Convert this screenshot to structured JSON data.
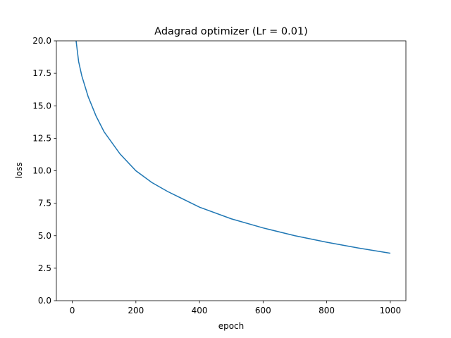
{
  "chart_data": {
    "type": "line",
    "title": "Adagrad optimizer (Lr = 0.01)",
    "xlabel": "epoch",
    "ylabel": "loss",
    "x": [
      12,
      20,
      30,
      50,
      75,
      100,
      150,
      200,
      250,
      300,
      400,
      500,
      600,
      700,
      800,
      900,
      1000
    ],
    "series": [
      {
        "name": "loss",
        "color": "#1f77b4",
        "values": [
          20,
          18.4,
          17.3,
          15.7,
          14.2,
          13.0,
          11.3,
          10.0,
          9.1,
          8.4,
          7.2,
          6.3,
          5.6,
          5.0,
          4.5,
          4.05,
          3.65
        ]
      }
    ],
    "xlim": [
      -50,
      1049
    ],
    "xticks": [
      0,
      200,
      400,
      600,
      800,
      1000
    ],
    "ylim": [
      0,
      20
    ],
    "yticks": [
      {
        "value": 0,
        "label": "0.0"
      },
      2.5,
      {
        "value": 5,
        "label": "5.0"
      },
      7.5,
      {
        "value": 10,
        "label": "10.0"
      },
      12.5,
      {
        "value": 15,
        "label": "15.0"
      },
      17.5,
      {
        "value": 20,
        "label": "20.0"
      }
    ],
    "grid": false
  }
}
